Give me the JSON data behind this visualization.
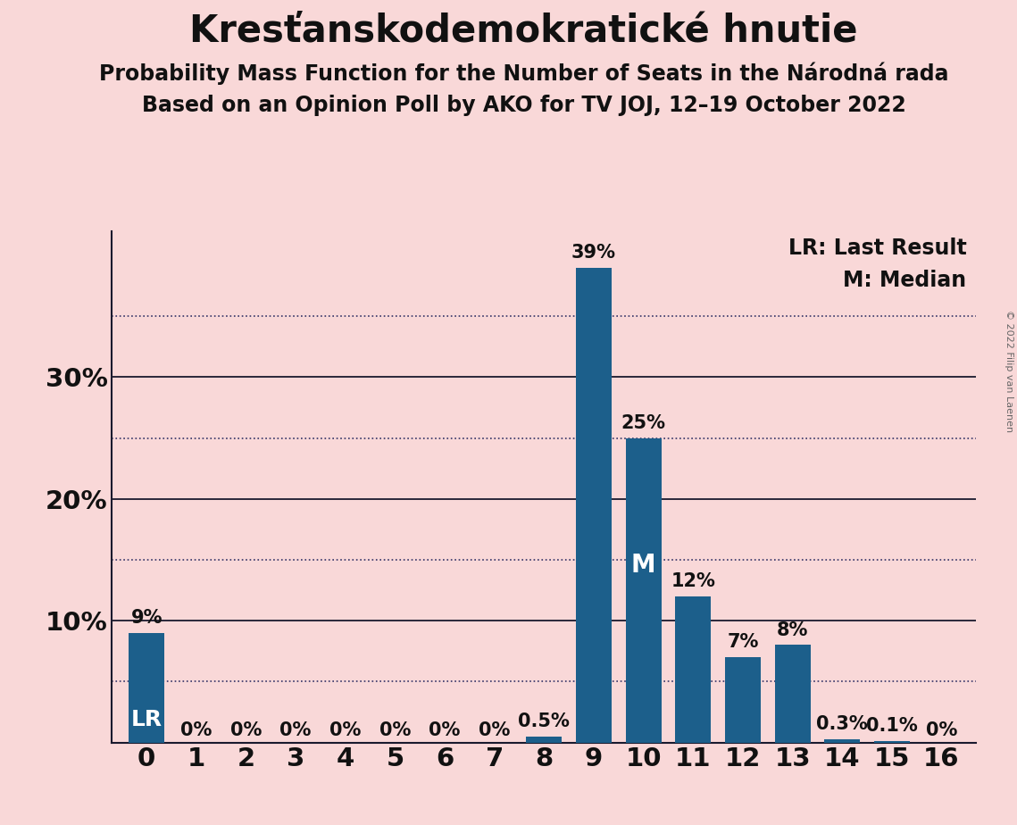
{
  "title": "Kresťanskodemokratické hnutie",
  "subtitle1": "Probability Mass Function for the Number of Seats in the Národná rada",
  "subtitle2": "Based on an Opinion Poll by AKO for TV JOJ, 12–19 October 2022",
  "copyright": "© 2022 Filip van Laenen",
  "categories": [
    0,
    1,
    2,
    3,
    4,
    5,
    6,
    7,
    8,
    9,
    10,
    11,
    12,
    13,
    14,
    15,
    16
  ],
  "values": [
    9,
    0,
    0,
    0,
    0,
    0,
    0,
    0,
    0.5,
    39,
    25,
    12,
    7,
    8,
    0.3,
    0.1,
    0
  ],
  "labels": [
    "9%",
    "0%",
    "0%",
    "0%",
    "0%",
    "0%",
    "0%",
    "0%",
    "0.5%",
    "39%",
    "25%",
    "12%",
    "7%",
    "8%",
    "0.3%",
    "0.1%",
    "0%"
  ],
  "bar_color": "#1c5f8b",
  "background_color": "#f9d8d8",
  "lr_seat": 0,
  "median_seat": 10,
  "ylim_max": 42,
  "solid_gridlines": [
    10,
    20,
    30
  ],
  "dotted_gridlines": [
    5,
    15,
    25,
    35
  ],
  "legend_lr": "LR: Last Result",
  "legend_m": "M: Median",
  "lr_label": "LR",
  "m_label": "M",
  "title_fontsize": 30,
  "subtitle_fontsize": 17,
  "tick_fontsize": 21,
  "bar_label_fontsize": 15,
  "legend_fontsize": 17
}
